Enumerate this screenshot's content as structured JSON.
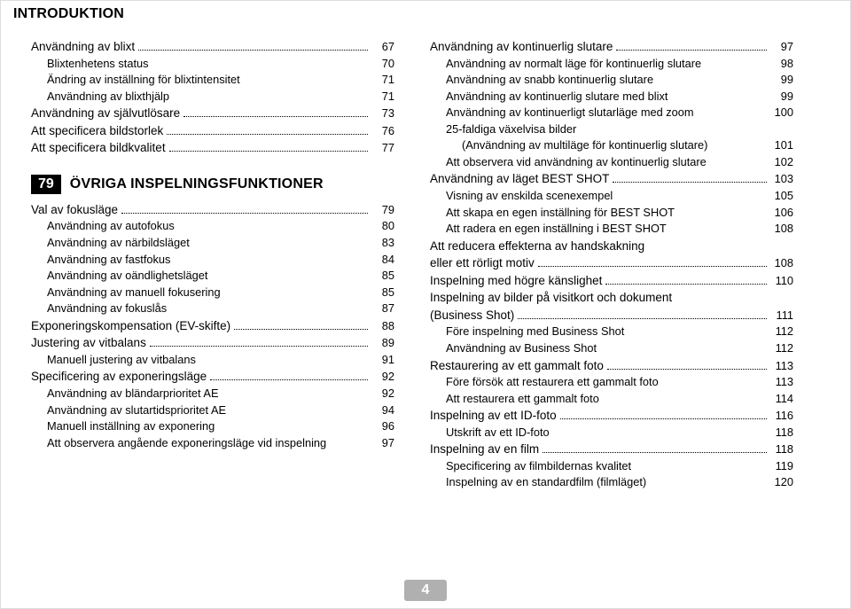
{
  "header": "INTRODUKTION",
  "page_number": "4",
  "section": {
    "badge": "79",
    "title": "ÖVRIGA INSPELNINGSFUNKTIONER"
  },
  "left": [
    {
      "type": "main",
      "label": "Användning av blixt",
      "page": "67",
      "dots": true
    },
    {
      "type": "sub",
      "label": "Blixtenhetens status",
      "page": "70"
    },
    {
      "type": "sub",
      "label": "Ändring av inställning för blixtintensitet",
      "page": "71"
    },
    {
      "type": "sub",
      "label": "Användning av blixthjälp",
      "page": "71"
    },
    {
      "type": "main",
      "label": "Användning av självutlösare",
      "page": "73",
      "dots": true
    },
    {
      "type": "main",
      "label": "Att specificera bildstorlek",
      "page": "76",
      "dots": true
    },
    {
      "type": "main",
      "label": "Att specificera bildkvalitet",
      "page": "77",
      "dots": true
    },
    {
      "type": "section"
    },
    {
      "type": "main",
      "label": "Val av fokusläge",
      "page": "79",
      "dots": true
    },
    {
      "type": "sub",
      "label": "Användning av autofokus",
      "page": "80"
    },
    {
      "type": "sub",
      "label": "Användning av närbildsläget",
      "page": "83"
    },
    {
      "type": "sub",
      "label": "Användning av fastfokus",
      "page": "84"
    },
    {
      "type": "sub",
      "label": "Användning av oändlighetsläget",
      "page": "85"
    },
    {
      "type": "sub",
      "label": "Användning av manuell fokusering",
      "page": "85"
    },
    {
      "type": "sub",
      "label": "Användning av fokuslås",
      "page": "87"
    },
    {
      "type": "main",
      "label": "Exponeringskompensation (EV-skifte)",
      "page": "88",
      "dots": true
    },
    {
      "type": "main",
      "label": "Justering av vitbalans",
      "page": "89",
      "dots": true
    },
    {
      "type": "sub",
      "label": "Manuell justering av vitbalans",
      "page": "91"
    },
    {
      "type": "main",
      "label": "Specificering av exponeringsläge",
      "page": "92",
      "dots": true
    },
    {
      "type": "sub",
      "label": "Användning av bländarprioritet AE",
      "page": "92"
    },
    {
      "type": "sub",
      "label": "Användning av slutartidsprioritet AE",
      "page": "94"
    },
    {
      "type": "sub",
      "label": "Manuell inställning av exponering",
      "page": "96"
    },
    {
      "type": "sub",
      "label": "Att observera angående exponeringsläge vid inspelning",
      "page": "97"
    }
  ],
  "right": [
    {
      "type": "main",
      "label": "Användning av kontinuerlig slutare",
      "page": "97",
      "dots": true
    },
    {
      "type": "sub",
      "label": "Användning av normalt läge för kontinuerlig slutare",
      "page": "98"
    },
    {
      "type": "sub",
      "label": "Användning av snabb kontinuerlig slutare",
      "page": "99"
    },
    {
      "type": "sub",
      "label": "Användning av kontinuerlig slutare med blixt",
      "page": "99"
    },
    {
      "type": "sub",
      "label": "Användning av kontinuerligt slutarläge med zoom",
      "page": "100"
    },
    {
      "type": "sub",
      "label": "25-faldiga växelvisa bilder",
      "page": ""
    },
    {
      "type": "sub",
      "label": "(Användning av multiläge för kontinuerlig slutare)",
      "page": "101",
      "indent2": true
    },
    {
      "type": "sub",
      "label": "Att observera vid användning av kontinuerlig slutare",
      "page": "102"
    },
    {
      "type": "main",
      "label": "Användning av läget BEST SHOT",
      "page": "103",
      "dots": true
    },
    {
      "type": "sub",
      "label": "Visning av enskilda scenexempel",
      "page": "105"
    },
    {
      "type": "sub",
      "label": "Att skapa en egen inställning för BEST SHOT",
      "page": "106"
    },
    {
      "type": "sub",
      "label": "Att radera en egen inställning i BEST SHOT",
      "page": "108"
    },
    {
      "type": "main",
      "label": "Att reducera effekterna av handskakning",
      "page": ""
    },
    {
      "type": "main",
      "label": "eller ett rörligt motiv",
      "page": "108",
      "dots": true
    },
    {
      "type": "main",
      "label": "Inspelning med högre känslighet",
      "page": "110",
      "dots": true
    },
    {
      "type": "main",
      "label": "Inspelning av bilder på visitkort och dokument",
      "page": ""
    },
    {
      "type": "main",
      "label": "(Business Shot)",
      "page": "111",
      "dots": true
    },
    {
      "type": "sub",
      "label": "Före inspelning med Business Shot",
      "page": "112"
    },
    {
      "type": "sub",
      "label": "Användning av Business Shot",
      "page": "112"
    },
    {
      "type": "main",
      "label": "Restaurering av ett gammalt foto",
      "page": "113",
      "dots": true
    },
    {
      "type": "sub",
      "label": "Före försök att restaurera ett gammalt foto",
      "page": "113"
    },
    {
      "type": "sub",
      "label": "Att restaurera ett gammalt foto",
      "page": "114"
    },
    {
      "type": "main",
      "label": "Inspelning av ett ID-foto",
      "page": "116",
      "dots": true
    },
    {
      "type": "sub",
      "label": "Utskrift av ett ID-foto",
      "page": "118"
    },
    {
      "type": "main",
      "label": "Inspelning av en film",
      "page": "118",
      "dots": true
    },
    {
      "type": "sub",
      "label": "Specificering av filmbildernas kvalitet",
      "page": "119"
    },
    {
      "type": "sub",
      "label": "Inspelning av en standardfilm (filmläget)",
      "page": "120"
    }
  ]
}
